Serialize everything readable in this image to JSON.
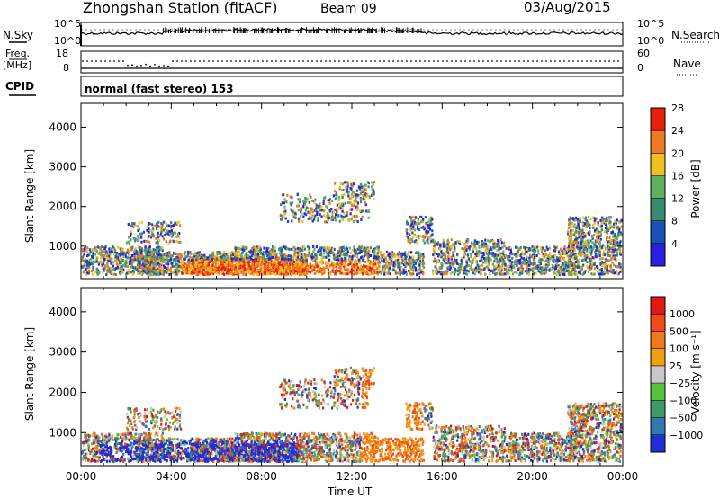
{
  "header": {
    "station": "Zhongshan Station (fitACF)",
    "beam": "Beam 09",
    "date": "03/Aug/2015"
  },
  "top_panel": {
    "left_label": "N.Sky",
    "right_label": "N.Search",
    "left_ticks": [
      "10^5",
      "10^0"
    ],
    "right_ticks": [
      "10^5",
      "10^0"
    ]
  },
  "freq_panel": {
    "left_label_1": "Freq.",
    "left_label_2": "[MHz]",
    "right_label": "Nave",
    "left_ticks": [
      "18",
      "8"
    ],
    "right_ticks": [
      "60",
      "0"
    ]
  },
  "cpid": {
    "label": "CPID",
    "text": "normal (fast stereo)",
    "value": "153"
  },
  "chart_data": [
    {
      "type": "heatmap",
      "ylabel": "Slant Range [km]",
      "xlabel": "",
      "y_ticks": [
        "1000",
        "2000",
        "3000",
        "4000"
      ],
      "ylim": [
        180,
        4600
      ],
      "colorbar": {
        "label": "Power [dB]",
        "ticks": [
          "4",
          "8",
          "12",
          "16",
          "20",
          "24",
          "28"
        ],
        "colors": [
          "#2a1ee0",
          "#1a50b8",
          "#3a8a70",
          "#5fb060",
          "#f0c020",
          "#f07820",
          "#e8200a"
        ]
      }
    },
    {
      "type": "heatmap",
      "ylabel": "Slant Range [km]",
      "xlabel": "Time UT",
      "y_ticks": [
        "1000",
        "2000",
        "3000",
        "4000"
      ],
      "x_ticks": [
        "00:00",
        "04:00",
        "08:00",
        "12:00",
        "16:00",
        "20:00",
        "00:00"
      ],
      "ylim": [
        180,
        4600
      ],
      "colorbar": {
        "label": "Velocity [m s⁻¹]",
        "ticks": [
          "1000",
          "500",
          "100",
          "25",
          "−25",
          "−100",
          "−500",
          "−1000"
        ],
        "colors": [
          "#1e2fd8",
          "#2f78b0",
          "#3f9a6a",
          "#56c43a",
          "#c8c8c8",
          "#f0a010",
          "#f07818",
          "#ee4a1a",
          "#e01a10"
        ]
      }
    }
  ]
}
